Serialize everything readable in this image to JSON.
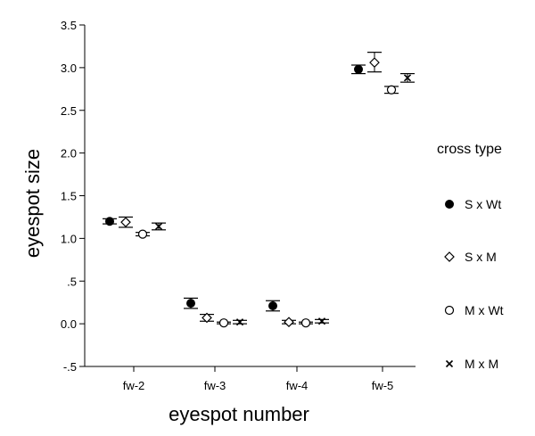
{
  "chart_data": {
    "type": "scatter",
    "title": "",
    "xlabel": "eyespot number",
    "ylabel": "eyespot size",
    "categories": [
      "fw-2",
      "fw-3",
      "fw-4",
      "fw-5"
    ],
    "ylim": [
      -0.5,
      3.5
    ],
    "yticks": [
      {
        "value": -0.5,
        "label": "-.5"
      },
      {
        "value": 0.0,
        "label": "0.0"
      },
      {
        "value": 0.5,
        "label": ".5"
      },
      {
        "value": 1.0,
        "label": "1.0"
      },
      {
        "value": 1.5,
        "label": "1.5"
      },
      {
        "value": 2.0,
        "label": "2.0"
      },
      {
        "value": 2.5,
        "label": "2.5"
      },
      {
        "value": 3.0,
        "label": "3.0"
      },
      {
        "value": 3.5,
        "label": "3.5"
      }
    ],
    "grid": false,
    "legend_title": "cross type",
    "legend_position": "right",
    "series": [
      {
        "name": "S x Wt",
        "marker": "filled-circle",
        "values": [
          1.2,
          0.24,
          0.21,
          2.98
        ],
        "error_low": [
          1.17,
          0.18,
          0.15,
          2.93
        ],
        "error_high": [
          1.23,
          0.3,
          0.27,
          3.03
        ]
      },
      {
        "name": "S x M",
        "marker": "diamond",
        "values": [
          1.19,
          0.07,
          0.02,
          3.06
        ],
        "error_low": [
          1.13,
          0.03,
          0.0,
          2.95
        ],
        "error_high": [
          1.25,
          0.11,
          0.04,
          3.18
        ]
      },
      {
        "name": "M x Wt",
        "marker": "open-circle",
        "values": [
          1.05,
          0.01,
          0.01,
          2.74
        ],
        "error_low": [
          1.03,
          0.0,
          0.0,
          2.7
        ],
        "error_high": [
          1.07,
          0.02,
          0.02,
          2.78
        ]
      },
      {
        "name": "M x M",
        "marker": "x",
        "values": [
          1.14,
          0.02,
          0.03,
          2.88
        ],
        "error_low": [
          1.1,
          0.0,
          0.01,
          2.83
        ],
        "error_high": [
          1.18,
          0.04,
          0.05,
          2.93
        ]
      }
    ]
  }
}
